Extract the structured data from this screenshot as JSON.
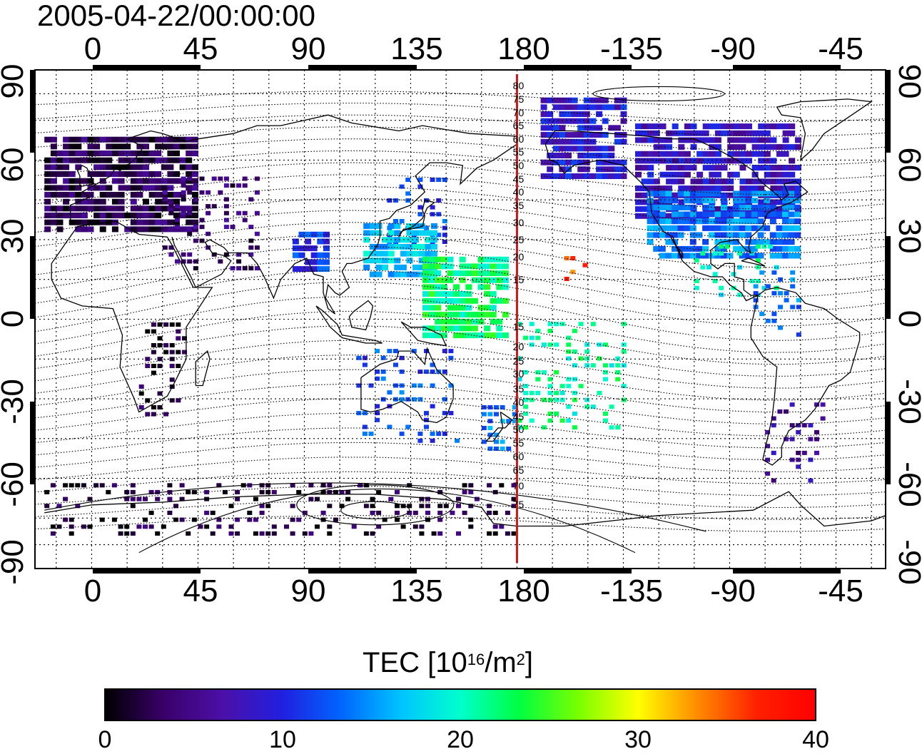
{
  "title": "2005-04-22/00:00:00",
  "map": {
    "lon_ticks_labels": [
      "0",
      "45",
      "90",
      "135",
      "180",
      "-135",
      "-90",
      "-45"
    ],
    "lat_ticks_labels": [
      "90",
      "60",
      "30",
      "0",
      "-30",
      "-60",
      "-90"
    ],
    "lon_ticks": [
      0,
      45,
      90,
      135,
      180,
      225,
      270,
      315
    ],
    "lat_ticks": [
      90,
      60,
      30,
      0,
      -30,
      -60,
      -90
    ],
    "lon_range": [
      -24,
      336
    ],
    "lat_range": [
      -94,
      94
    ],
    "dateline_lon": 180,
    "dateline_color": "#cc1a1a",
    "meridian_labels_north": [
      "80",
      "75",
      "70",
      "65",
      "60",
      "55",
      "50",
      "45",
      "40",
      "35",
      "30",
      "25",
      "20",
      "15"
    ],
    "meridian_labels_south": [
      "15",
      "20",
      "25",
      "30",
      "35",
      "40",
      "45",
      "50",
      "55",
      "60",
      "65",
      "70",
      "75"
    ]
  },
  "colorbar": {
    "title_main": "TEC  [10",
    "title_exp1": "16",
    "title_mid": "/m",
    "title_exp2": "2",
    "title_end": "]",
    "min": 0,
    "max": 40,
    "ticks": [
      "0",
      "10",
      "20",
      "30",
      "40"
    ],
    "colors": [
      "#000000",
      "#3a006a",
      "#4b10a8",
      "#2020e0",
      "#0066ff",
      "#00c4ff",
      "#00ffcc",
      "#00ff40",
      "#7aff00",
      "#ffff00",
      "#ff8c00",
      "#ff2000",
      "#ff0000"
    ]
  },
  "chart_data": {
    "type": "heatmap",
    "title": "2005-04-22/00:00:00",
    "xlabel": "",
    "ylabel": "",
    "value_label": "TEC  [10^16/m^2]",
    "value_range": [
      0,
      40
    ],
    "regions": [
      {
        "lon_range": [
          -20,
          45
        ],
        "lat_range": [
          35,
          70
        ],
        "tec": 3
      },
      {
        "lon_range": [
          30,
          70
        ],
        "lat_range": [
          20,
          55
        ],
        "tec": 4
      },
      {
        "lon_range": [
          85,
          100
        ],
        "lat_range": [
          20,
          35
        ],
        "tec": 11
      },
      {
        "lon_range": [
          125,
          150
        ],
        "lat_range": [
          30,
          55
        ],
        "tec": 12
      },
      {
        "lon_range": [
          115,
          145
        ],
        "lat_range": [
          18,
          38
        ],
        "tec": 17
      },
      {
        "lon_range": [
          140,
          175
        ],
        "lat_range": [
          -5,
          25
        ],
        "tec": 22
      },
      {
        "lon_range": [
          200,
          212
        ],
        "lat_range": [
          16,
          25
        ],
        "tec": 36
      },
      {
        "lon_range": [
          190,
          225
        ],
        "lat_range": [
          55,
          85
        ],
        "tec": 9
      },
      {
        "lon_range": [
          230,
          300
        ],
        "lat_range": [
          40,
          75
        ],
        "tec": 8
      },
      {
        "lon_range": [
          235,
          300
        ],
        "lat_range": [
          25,
          50
        ],
        "tec": 14
      },
      {
        "lon_range": [
          255,
          290
        ],
        "lat_range": [
          10,
          30
        ],
        "tec": 20
      },
      {
        "lon_range": [
          280,
          300
        ],
        "lat_range": [
          -5,
          20
        ],
        "tec": 14
      },
      {
        "lon_range": [
          112,
          155
        ],
        "lat_range": [
          -45,
          -10
        ],
        "tec": 12
      },
      {
        "lon_range": [
          165,
          180
        ],
        "lat_range": [
          -48,
          -30
        ],
        "tec": 14
      },
      {
        "lon_range": [
          285,
          310
        ],
        "lat_range": [
          -60,
          -30
        ],
        "tec": 6
      },
      {
        "lon_range": [
          -20,
          180
        ],
        "lat_range": [
          -80,
          -60
        ],
        "tec": 2
      },
      {
        "lon_range": [
          20,
          40
        ],
        "lat_range": [
          -35,
          0
        ],
        "tec": 1
      },
      {
        "lon_range": [
          180,
          225
        ],
        "lat_range": [
          -40,
          0
        ],
        "tec": 21
      }
    ]
  }
}
